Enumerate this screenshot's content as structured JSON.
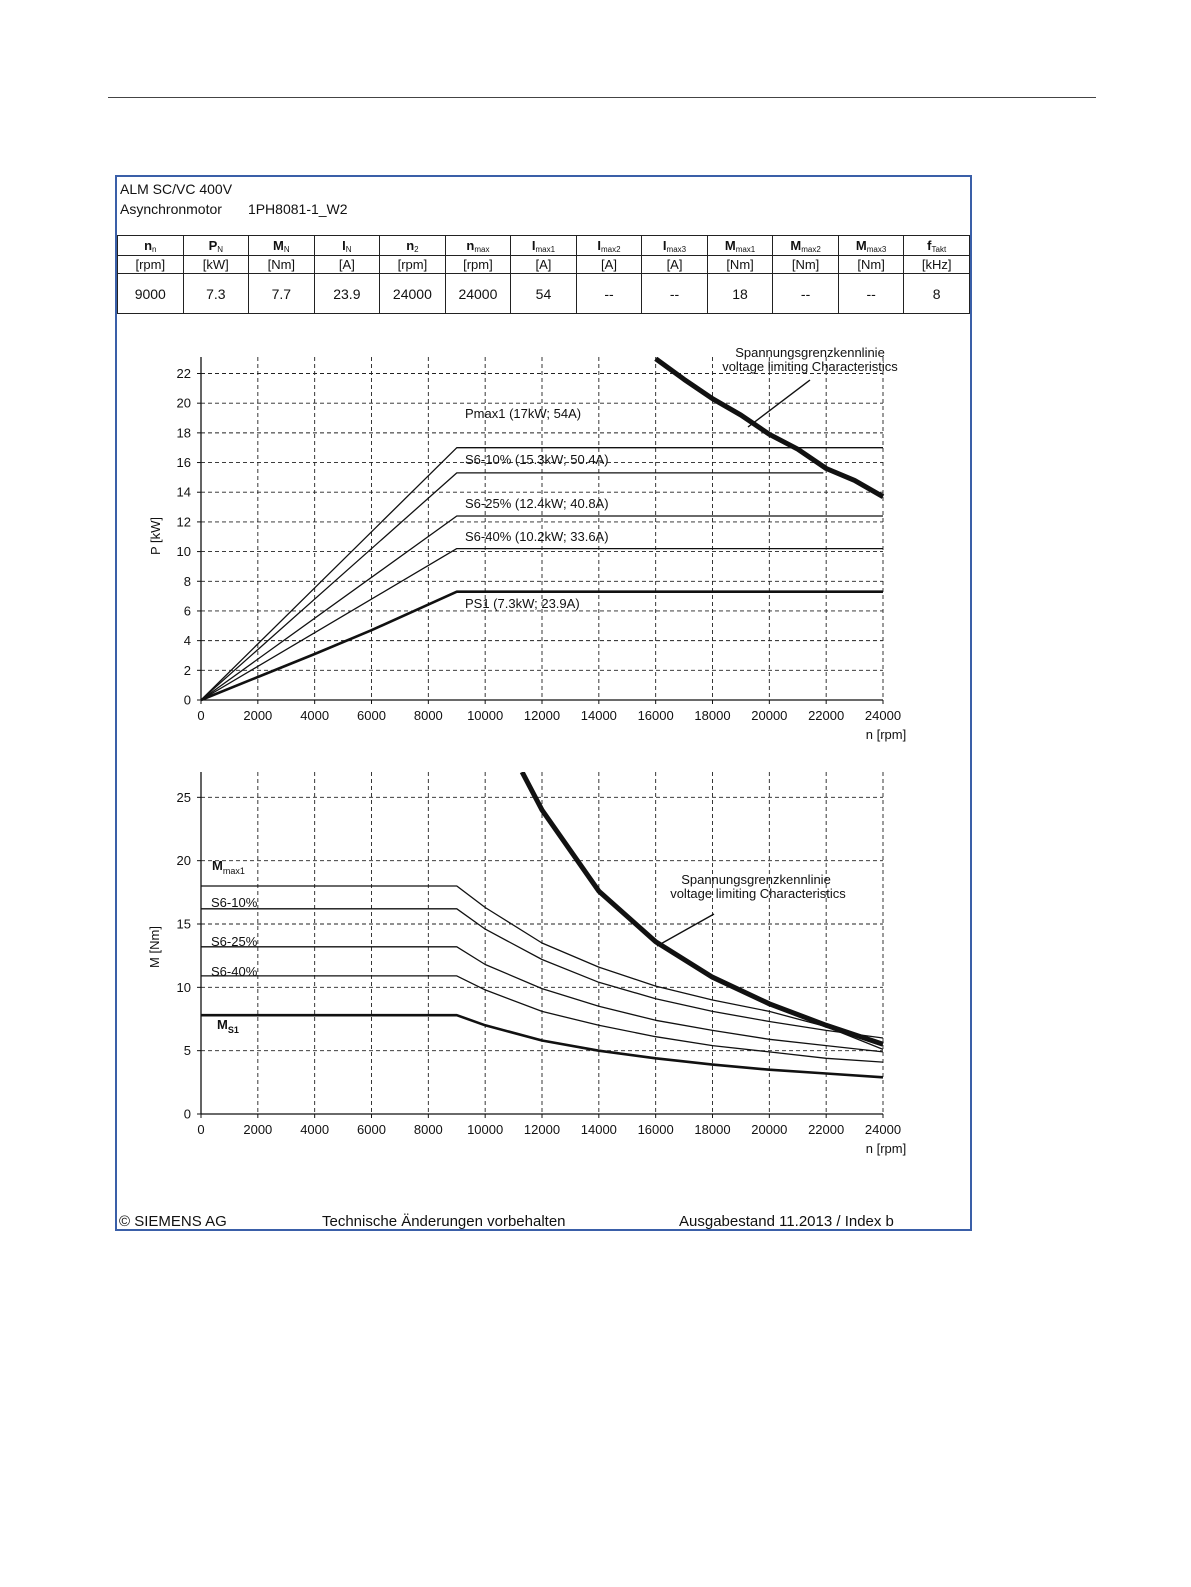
{
  "header": {
    "line1": "ALM SC/VC 400V",
    "line2_label": "Asynchronmotor",
    "line2_model": "1PH8081-1_W2"
  },
  "spec_table": {
    "columns": [
      {
        "base": "n",
        "sub": "n",
        "unit": "[rpm]",
        "value": "9000"
      },
      {
        "base": "P",
        "sub": "N",
        "unit": "[kW]",
        "value": "7.3"
      },
      {
        "base": "M",
        "sub": "N",
        "unit": "[Nm]",
        "value": "7.7"
      },
      {
        "base": "I",
        "sub": "N",
        "unit": "[A]",
        "value": "23.9"
      },
      {
        "base": "n",
        "sub": "2",
        "unit": "[rpm]",
        "value": "24000"
      },
      {
        "base": "n",
        "sub": "max",
        "unit": "[rpm]",
        "value": "24000"
      },
      {
        "base": "I",
        "sub": "max1",
        "unit": "[A]",
        "value": "54"
      },
      {
        "base": "I",
        "sub": "max2",
        "unit": "[A]",
        "value": "--"
      },
      {
        "base": "I",
        "sub": "max3",
        "unit": "[A]",
        "value": "--"
      },
      {
        "base": "M",
        "sub": "max1",
        "unit": "[Nm]",
        "value": "18"
      },
      {
        "base": "M",
        "sub": "max2",
        "unit": "[Nm]",
        "value": "--"
      },
      {
        "base": "M",
        "sub": "max3",
        "unit": "[Nm]",
        "value": "--"
      },
      {
        "base": "f",
        "sub": "Takt",
        "unit": "[kHz]",
        "value": "8"
      }
    ]
  },
  "chart_data": [
    {
      "type": "line",
      "ylabel": "P [kW]",
      "xlabel": "n [rpm]",
      "xlim": [
        0,
        24000
      ],
      "ylim": [
        0,
        22
      ],
      "xticks": [
        "0",
        "2000",
        "4000",
        "6000",
        "8000",
        "10000",
        "12000",
        "14000",
        "16000",
        "18000",
        "20000",
        "22000",
        "24000"
      ],
      "yticks": [
        "0",
        "2",
        "4",
        "6",
        "8",
        "10",
        "12",
        "14",
        "16",
        "18",
        "20",
        "22"
      ],
      "grid": true,
      "series": [
        {
          "name": "Pmax1 (17kW; 54A)",
          "weight": "thin",
          "points": [
            [
              0,
              0
            ],
            [
              9000,
              17
            ],
            [
              24000,
              17
            ]
          ]
        },
        {
          "name": "S6-10% (15.3kW; 50.4A)",
          "weight": "thin",
          "points": [
            [
              0,
              0
            ],
            [
              9000,
              15.3
            ],
            [
              21900,
              15.3
            ]
          ]
        },
        {
          "name": "S6-25% (12.4kW; 40.8A)",
          "weight": "thin",
          "points": [
            [
              0,
              0
            ],
            [
              9000,
              12.4
            ],
            [
              24000,
              12.4
            ]
          ]
        },
        {
          "name": "S6-40% (10.2kW; 33.6A)",
          "weight": "thin",
          "points": [
            [
              0,
              0
            ],
            [
              9000,
              10.2
            ],
            [
              24000,
              10.2
            ]
          ]
        },
        {
          "name": "PS1 (7.3kW; 23.9A)",
          "weight": "bold",
          "points": [
            [
              0,
              0
            ],
            [
              4000,
              3.1
            ],
            [
              6000,
              4.7
            ],
            [
              9000,
              7.3
            ],
            [
              24000,
              7.3
            ]
          ]
        },
        {
          "name": "voltage limit",
          "weight": "heavy",
          "points": [
            [
              16000,
              23
            ],
            [
              17000,
              21.6
            ],
            [
              18000,
              20.3
            ],
            [
              19000,
              19.2
            ],
            [
              20000,
              17.9
            ],
            [
              21000,
              16.9
            ],
            [
              22000,
              15.6
            ],
            [
              23000,
              14.8
            ],
            [
              24000,
              13.7
            ]
          ]
        }
      ],
      "annotation": {
        "line1": "Spannungsgrenzkennlinie",
        "line2": "voltage limiting  Characteristics"
      }
    },
    {
      "type": "line",
      "ylabel": "M [Nm]",
      "xlabel": "n [rpm]",
      "xlim": [
        0,
        24000
      ],
      "ylim": [
        0,
        27
      ],
      "xticks": [
        "0",
        "2000",
        "4000",
        "6000",
        "8000",
        "10000",
        "12000",
        "14000",
        "16000",
        "18000",
        "20000",
        "22000",
        "24000"
      ],
      "yticks": [
        "0",
        "5",
        "10",
        "15",
        "20",
        "25"
      ],
      "grid": true,
      "series": [
        {
          "name": "Mmax1",
          "weight": "thin",
          "points": [
            [
              0,
              18
            ],
            [
              9000,
              18
            ],
            [
              10000,
              16.3
            ],
            [
              12000,
              13.5
            ],
            [
              14000,
              11.6
            ],
            [
              16000,
              10.1
            ],
            [
              18000,
              9
            ],
            [
              20000,
              8.1
            ],
            [
              22000,
              6.9
            ],
            [
              24000,
              5.1
            ]
          ]
        },
        {
          "name": "S6-10%",
          "weight": "thin",
          "points": [
            [
              0,
              16.2
            ],
            [
              9000,
              16.2
            ],
            [
              10000,
              14.6
            ],
            [
              12000,
              12.2
            ],
            [
              14000,
              10.4
            ],
            [
              16000,
              9.1
            ],
            [
              18000,
              8.1
            ],
            [
              20000,
              7.3
            ],
            [
              22000,
              6.6
            ],
            [
              24000,
              6
            ]
          ]
        },
        {
          "name": "S6-25%",
          "weight": "thin",
          "points": [
            [
              0,
              13.2
            ],
            [
              9000,
              13.2
            ],
            [
              10000,
              11.8
            ],
            [
              12000,
              9.9
            ],
            [
              14000,
              8.5
            ],
            [
              16000,
              7.4
            ],
            [
              18000,
              6.6
            ],
            [
              20000,
              5.9
            ],
            [
              22000,
              5.4
            ],
            [
              24000,
              4.9
            ]
          ]
        },
        {
          "name": "S6-40%",
          "weight": "thin",
          "points": [
            [
              0,
              10.9
            ],
            [
              9000,
              10.9
            ],
            [
              10000,
              9.8
            ],
            [
              12000,
              8.1
            ],
            [
              14000,
              7
            ],
            [
              16000,
              6.1
            ],
            [
              18000,
              5.4
            ],
            [
              20000,
              4.9
            ],
            [
              22000,
              4.4
            ],
            [
              24000,
              4.1
            ]
          ]
        },
        {
          "name": "MS1",
          "weight": "bold",
          "points": [
            [
              0,
              7.8
            ],
            [
              9000,
              7.8
            ],
            [
              10000,
              7
            ],
            [
              12000,
              5.8
            ],
            [
              14000,
              5
            ],
            [
              16000,
              4.4
            ],
            [
              18000,
              3.9
            ],
            [
              20000,
              3.5
            ],
            [
              22000,
              3.2
            ],
            [
              24000,
              2.9
            ]
          ]
        },
        {
          "name": "voltage limit",
          "weight": "heavy",
          "points": [
            [
              11300,
              27
            ],
            [
              12000,
              24
            ],
            [
              14000,
              17.6
            ],
            [
              16000,
              13.6
            ],
            [
              18000,
              10.8
            ],
            [
              20000,
              8.7
            ],
            [
              22000,
              7
            ],
            [
              24000,
              5.5
            ]
          ]
        }
      ],
      "curve_labels": {
        "mmax1_base": "M",
        "mmax1_sub": "max1",
        "s6_10": "S6-10%",
        "s6_25": "S6-25%",
        "s6_40": "S6-40%",
        "ms1_base": "M",
        "ms1_sub": "S1"
      },
      "annotation": {
        "line1": "Spannungsgrenzkennlinie",
        "line2": "voltage limiting  Characteristics"
      }
    }
  ],
  "footer": {
    "copyright": "© SIEMENS AG",
    "notice": "Technische Änderungen vorbehalten",
    "edition": "Ausgabestand 11.2013 / Index b"
  }
}
